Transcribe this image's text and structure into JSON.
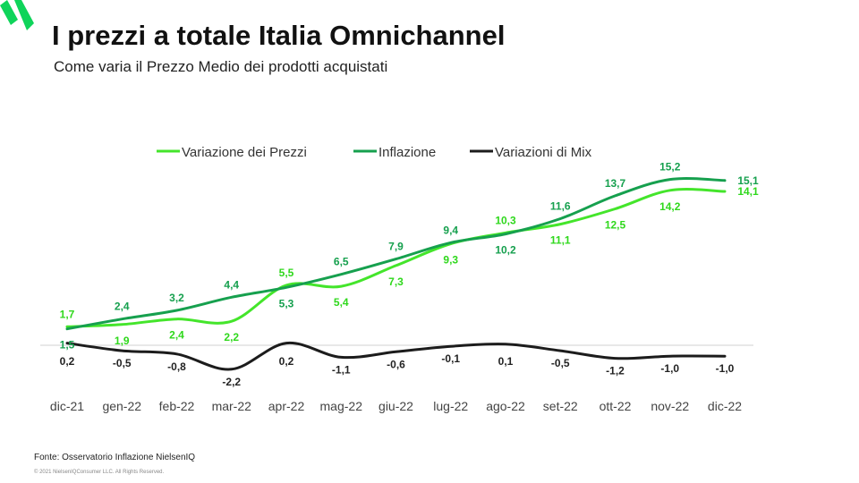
{
  "header": {
    "title": "I prezzi a totale Italia Omnichannel",
    "subtitle": "Come varia il Prezzo Medio dei prodotti acquistati"
  },
  "footer": {
    "source": "Fonte: Osservatorio Inflazione NielsenIQ",
    "copyright": "© 2021 NielsenIQConsumer LLC. All Rights Reserved."
  },
  "colors": {
    "prezzi": "#44e52b",
    "inflazione": "#16a04e",
    "mix": "#1c1c1c",
    "logo": "#0fd45a"
  },
  "chart_data": {
    "type": "line",
    "categories": [
      "dic-21",
      "gen-22",
      "feb-22",
      "mar-22",
      "apr-22",
      "mag-22",
      "giu-22",
      "lug-22",
      "ago-22",
      "set-22",
      "ott-22",
      "nov-22",
      "dic-22"
    ],
    "series": [
      {
        "name": "Variazione dei Prezzi",
        "values": [
          1.7,
          1.9,
          2.4,
          2.2,
          5.5,
          5.4,
          7.3,
          9.3,
          10.3,
          11.1,
          12.5,
          14.2,
          14.1
        ],
        "labels": [
          "1,7",
          "1,9",
          "2,4",
          "2,2",
          "5,5",
          "5,4",
          "7,3",
          "9,3",
          "10,3",
          "11,1",
          "12,5",
          "14,2",
          "14,1"
        ]
      },
      {
        "name": "Inflazione",
        "values": [
          1.5,
          2.4,
          3.2,
          4.4,
          5.3,
          6.5,
          7.9,
          9.4,
          10.2,
          11.6,
          13.7,
          15.2,
          15.1
        ],
        "labels": [
          "1,5",
          "2,4",
          "3,2",
          "4,4",
          "5,3",
          "6,5",
          "7,9",
          "9,4",
          "10,2",
          "11,6",
          "13,7",
          "15,2",
          "15,1"
        ]
      },
      {
        "name": "Variazioni di Mix",
        "values": [
          0.2,
          -0.5,
          -0.8,
          -2.2,
          0.2,
          -1.1,
          -0.6,
          -0.1,
          0.1,
          -0.5,
          -1.2,
          -1.0,
          -1.0
        ],
        "labels": [
          "0,2",
          "-0,5",
          "-0,8",
          "-2,2",
          "0,2",
          "-1,1",
          "-0,6",
          "-0,1",
          "0,1",
          "-0,5",
          "-1,2",
          "-1,0",
          "-1,0"
        ]
      }
    ],
    "xlabel": "",
    "ylabel": "",
    "ylim": [
      -2.5,
      16
    ],
    "grid": false,
    "legend": "top-center"
  }
}
